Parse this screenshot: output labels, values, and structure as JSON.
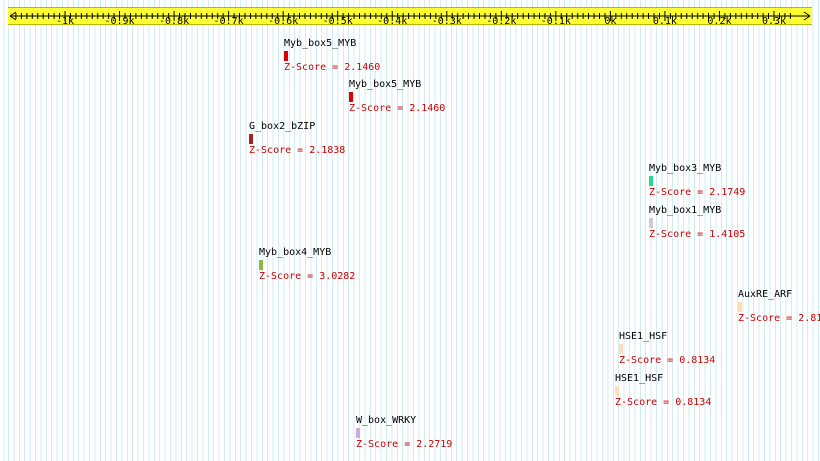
{
  "chart_data": {
    "type": "motif-map",
    "axis": {
      "min": -1.1,
      "max": 0.33,
      "unit": "k",
      "ticks": [
        {
          "value": -1.0,
          "label": "-1k"
        },
        {
          "value": -0.9,
          "label": "-0.9k"
        },
        {
          "value": -0.8,
          "label": "-0.8k"
        },
        {
          "value": -0.7,
          "label": "-0.7k"
        },
        {
          "value": -0.6,
          "label": "-0.6k"
        },
        {
          "value": -0.5,
          "label": "-0.5k"
        },
        {
          "value": -0.4,
          "label": "-0.4k"
        },
        {
          "value": -0.3,
          "label": "-0.3k"
        },
        {
          "value": -0.2,
          "label": "-0.2k"
        },
        {
          "value": -0.1,
          "label": "-0.1k"
        },
        {
          "value": 0.0,
          "label": "0k"
        },
        {
          "value": 0.1,
          "label": "0.1k"
        },
        {
          "value": 0.2,
          "label": "0.2k"
        },
        {
          "value": 0.3,
          "label": "0.3k"
        }
      ]
    },
    "motifs": [
      {
        "name": "Myb_box5_MYB",
        "position": -0.598,
        "score_label": "Z-Score = 2.1460",
        "color": "#dd0000"
      },
      {
        "name": "Myb_box5_MYB",
        "position": -0.479,
        "score_label": "Z-Score = 2.1460",
        "color": "#dd0000"
      },
      {
        "name": "G_box2_bZIP",
        "position": -0.663,
        "score_label": "Z-Score = 2.1838",
        "color": "#aa2222"
      },
      {
        "name": "Myb_box3_MYB",
        "position": 0.07,
        "score_label": "Z-Score = 2.1749",
        "color": "#22dd88"
      },
      {
        "name": "Myb_box1_MYB",
        "position": 0.07,
        "score_label": "Z-Score = 1.4105",
        "color": "#ccccdd"
      },
      {
        "name": "Myb_box4_MYB",
        "position": -0.644,
        "score_label": "Z-Score = 3.0282",
        "color": "#88bb44"
      },
      {
        "name": "AuxRE_ARF",
        "position": 0.234,
        "score_label": "Z-Score = 2.81",
        "color": "#ffddaa"
      },
      {
        "name": "HSE1_HSF",
        "position": 0.015,
        "score_label": "Z-Score = 0.8134",
        "color": "#ffddbb"
      },
      {
        "name": "HSE1_HSF",
        "position": 0.008,
        "score_label": "Z-Score = 0.8134",
        "color": "#ffddbb"
      },
      {
        "name": "W_box_WRKY",
        "position": -0.466,
        "score_label": "Z-Score = 2.2719",
        "color": "#ccaadd"
      }
    ]
  }
}
